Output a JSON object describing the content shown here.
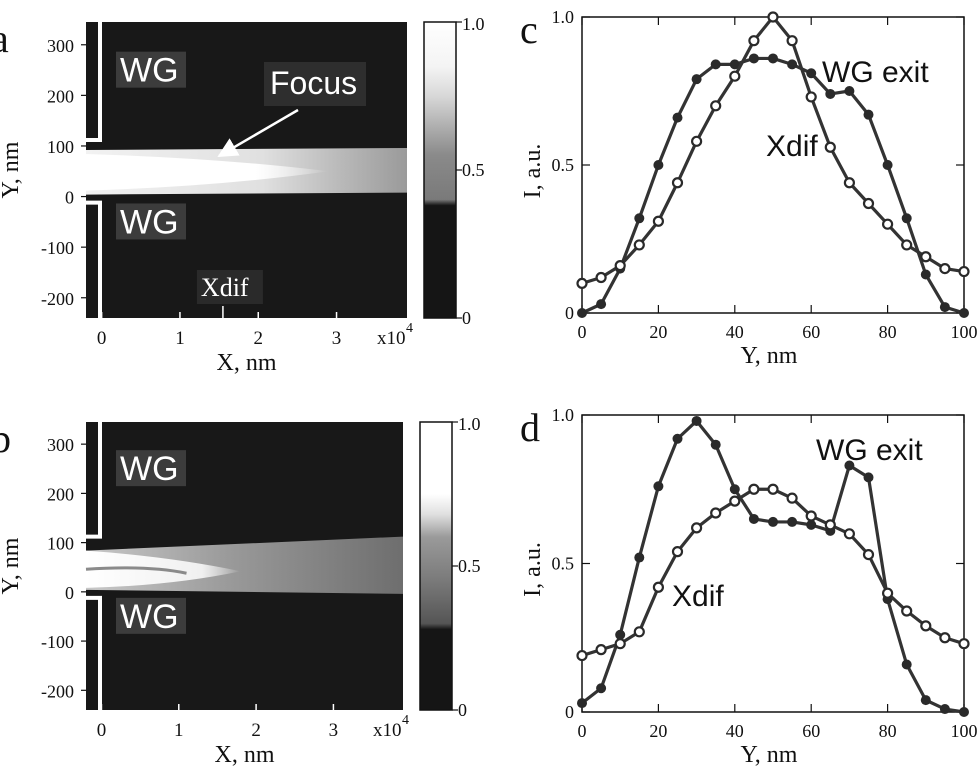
{
  "chart_data": [
    {
      "type": "heatmap",
      "panel_label": "a",
      "xlabel": "X, nm",
      "ylabel": "Y, nm",
      "x_ticks": [
        "0",
        "1",
        "2",
        "3"
      ],
      "x_multiplier": "x10",
      "x_multiplier_exp": "4",
      "y_ticks": [
        "300",
        "200",
        "100",
        "0",
        "-100",
        "-200"
      ],
      "xlim": [
        -0.2,
        3.9
      ],
      "ylim": [
        -240,
        345
      ],
      "colorbar_ticks": [
        "1.0",
        "0.5",
        "0"
      ],
      "annotations": [
        "WG",
        "WG",
        "Focus",
        "Xdif"
      ],
      "waveguide_gap": [
        0,
        100
      ],
      "focus_x": 1.5,
      "xdif_x": 1.6
    },
    {
      "type": "heatmap",
      "panel_label": "b",
      "xlabel": "X, nm",
      "ylabel": "Y, nm",
      "x_ticks": [
        "0",
        "1",
        "2",
        "3"
      ],
      "x_multiplier": "x10",
      "x_multiplier_exp": "4",
      "y_ticks": [
        "300",
        "200",
        "100",
        "0",
        "-100",
        "-200"
      ],
      "xlim": [
        -0.2,
        3.9
      ],
      "ylim": [
        -240,
        345
      ],
      "colorbar_ticks": [
        "1.0",
        "0.5",
        "0"
      ],
      "annotations": [
        "WG",
        "WG"
      ],
      "waveguide_gap": [
        0,
        100
      ]
    },
    {
      "type": "line",
      "panel_label": "c",
      "xlabel": "Y, nm",
      "ylabel": "I, a.u.",
      "x_ticks": [
        "0",
        "20",
        "40",
        "60",
        "80",
        "100"
      ],
      "y_ticks": [
        "0",
        "0.5",
        "1.0"
      ],
      "xlim": [
        0,
        100
      ],
      "ylim": [
        0,
        1.0
      ],
      "annotations": [
        "WG exit",
        "Xdif"
      ],
      "series": [
        {
          "name": "WG exit",
          "marker": "filled",
          "x": [
            0,
            5,
            10,
            15,
            20,
            25,
            30,
            35,
            40,
            45,
            50,
            55,
            60,
            65,
            70,
            75,
            80,
            85,
            90,
            95,
            100
          ],
          "values": [
            0.0,
            0.03,
            0.15,
            0.32,
            0.5,
            0.66,
            0.79,
            0.84,
            0.84,
            0.86,
            0.86,
            0.84,
            0.81,
            0.74,
            0.75,
            0.67,
            0.5,
            0.32,
            0.13,
            0.02,
            0.0
          ]
        },
        {
          "name": "Xdif",
          "marker": "open",
          "x": [
            0,
            5,
            10,
            15,
            20,
            25,
            30,
            35,
            40,
            45,
            50,
            55,
            60,
            65,
            70,
            75,
            80,
            85,
            90,
            95,
            100
          ],
          "values": [
            0.1,
            0.12,
            0.16,
            0.23,
            0.31,
            0.44,
            0.58,
            0.7,
            0.8,
            0.92,
            1.0,
            0.92,
            0.73,
            0.56,
            0.44,
            0.37,
            0.3,
            0.23,
            0.19,
            0.15,
            0.14
          ]
        }
      ]
    },
    {
      "type": "line",
      "panel_label": "d",
      "xlabel": "Y, nm",
      "ylabel": "I, a.u.",
      "x_ticks": [
        "0",
        "20",
        "40",
        "60",
        "80",
        "100"
      ],
      "y_ticks": [
        "0",
        "0.5",
        "1.0"
      ],
      "xlim": [
        0,
        100
      ],
      "ylim": [
        0,
        1.0
      ],
      "annotations": [
        "WG exit",
        "Xdif"
      ],
      "series": [
        {
          "name": "WG exit",
          "marker": "filled",
          "x": [
            0,
            5,
            10,
            15,
            20,
            25,
            30,
            35,
            40,
            45,
            50,
            55,
            60,
            65,
            70,
            75,
            80,
            85,
            90,
            95,
            100
          ],
          "values": [
            0.03,
            0.08,
            0.26,
            0.52,
            0.76,
            0.92,
            0.98,
            0.9,
            0.75,
            0.65,
            0.64,
            0.64,
            0.63,
            0.61,
            0.83,
            0.79,
            0.38,
            0.16,
            0.04,
            0.01,
            0.0
          ]
        },
        {
          "name": "Xdif",
          "marker": "open",
          "x": [
            0,
            5,
            10,
            15,
            20,
            25,
            30,
            35,
            40,
            45,
            50,
            55,
            60,
            65,
            70,
            75,
            80,
            85,
            90,
            95,
            100
          ],
          "values": [
            0.19,
            0.21,
            0.23,
            0.27,
            0.42,
            0.54,
            0.62,
            0.67,
            0.71,
            0.75,
            0.75,
            0.72,
            0.66,
            0.63,
            0.6,
            0.53,
            0.4,
            0.34,
            0.29,
            0.25,
            0.23
          ]
        }
      ]
    }
  ]
}
